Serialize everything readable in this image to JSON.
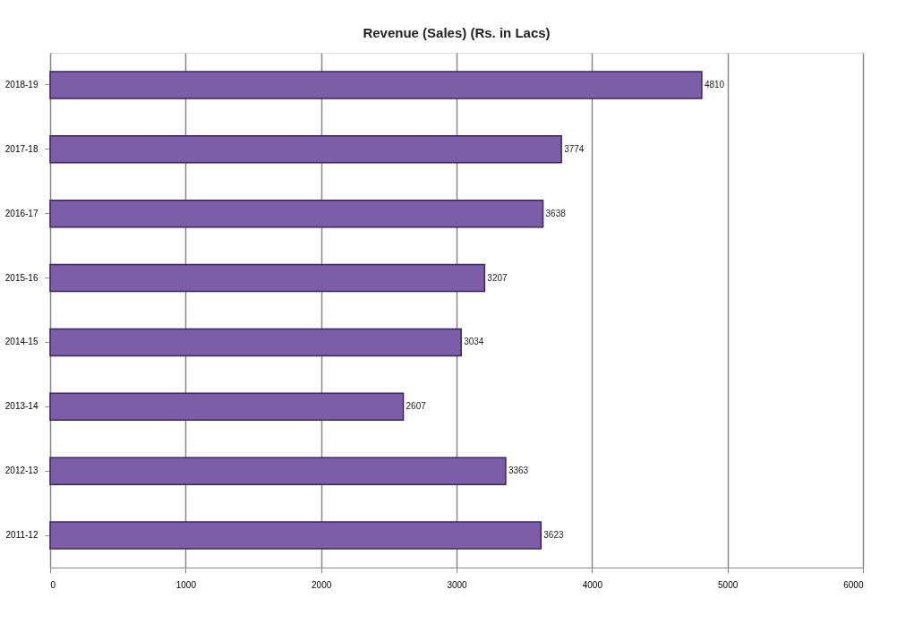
{
  "chart_data": {
    "type": "bar",
    "orientation": "horizontal",
    "title": "Revenue (Sales) (Rs. in Lacs)",
    "categories": [
      "2018-19",
      "2017-18",
      "2016-17",
      "2015-16",
      "2014-15",
      "2013-14",
      "2012-13",
      "2011-12"
    ],
    "values": [
      4810,
      3774,
      3638,
      3207,
      3034,
      2607,
      3363,
      3623
    ],
    "color": "#7b5ea7",
    "xlim": [
      0,
      6000
    ],
    "xticks": [
      0,
      1000,
      2000,
      3000,
      4000,
      5000,
      6000
    ],
    "grid": "x",
    "data_labels": true
  }
}
